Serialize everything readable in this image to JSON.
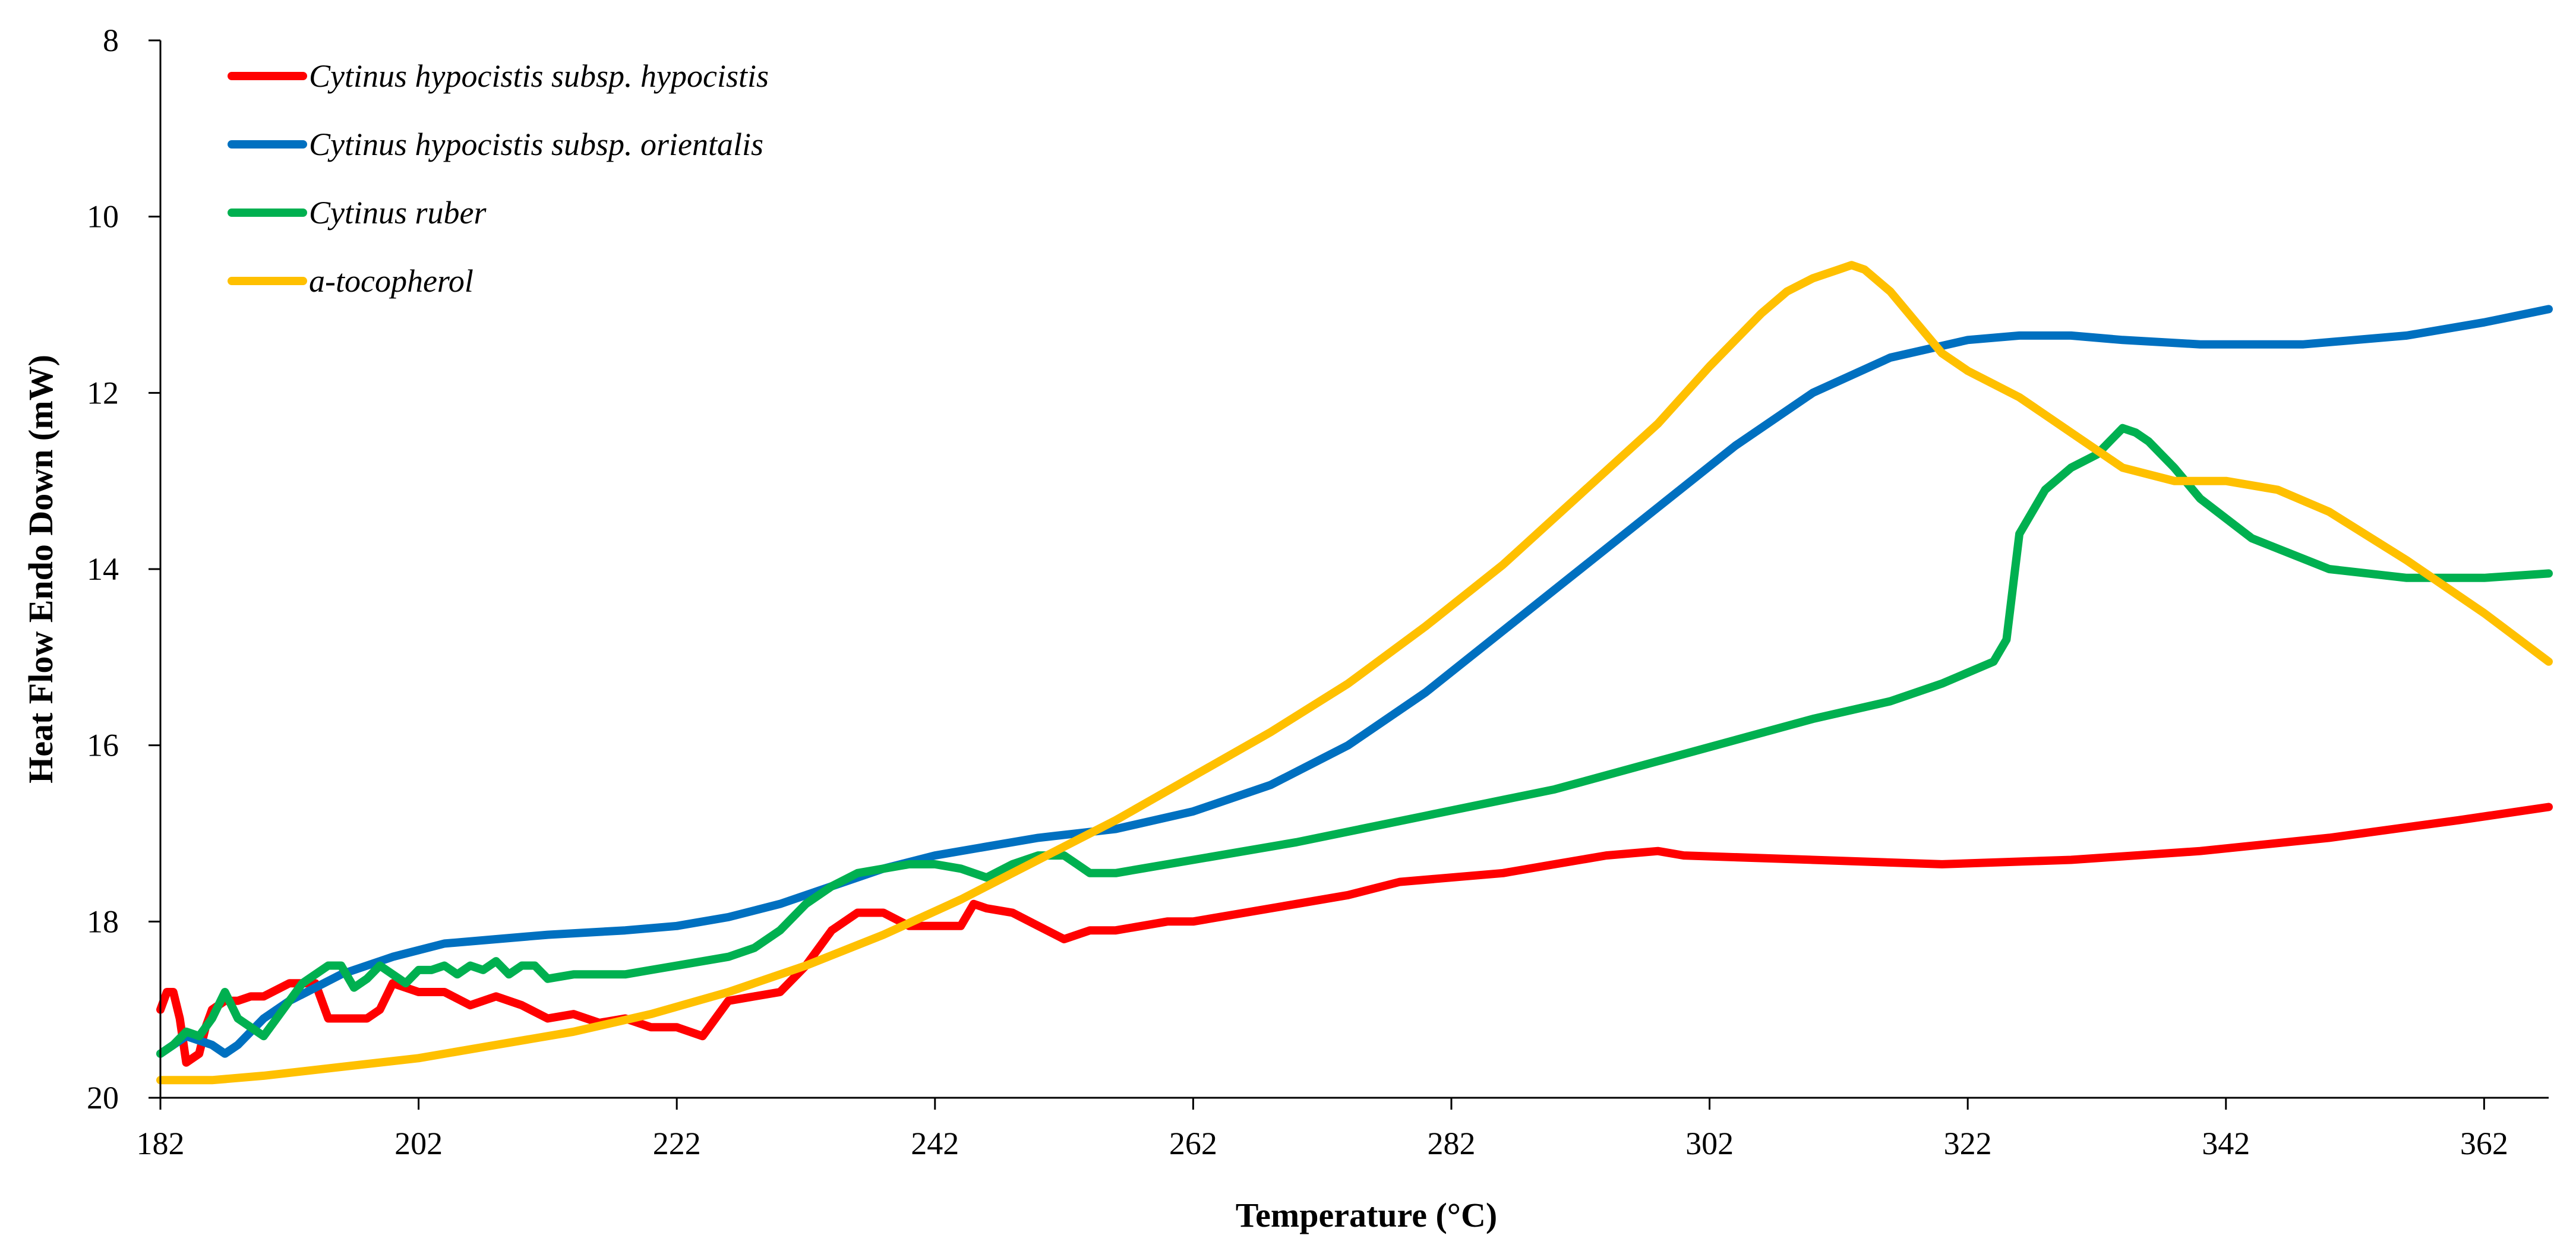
{
  "chart_data": {
    "type": "line",
    "title": "",
    "xlabel": "Temperature (°C)",
    "ylabel": "Heat Flow Endo Down (mW)",
    "xlim": [
      182,
      367
    ],
    "ylim": [
      8,
      20
    ],
    "y_inverted": true,
    "x_ticks": [
      182,
      202,
      222,
      242,
      262,
      282,
      302,
      322,
      342,
      362
    ],
    "y_ticks": [
      8,
      10,
      12,
      14,
      16,
      18,
      20
    ],
    "grid": false,
    "legend_position": "top-left",
    "series": [
      {
        "name": "Cytinus hypocistis subsp. hypocistis",
        "color": "#ff0000",
        "x": [
          182,
          182.5,
          183,
          183.5,
          184,
          185,
          185.5,
          186,
          187,
          188,
          189,
          190,
          192,
          194,
          195,
          196,
          197,
          198,
          199,
          200,
          202,
          204,
          206,
          208,
          210,
          212,
          214,
          216,
          218,
          220,
          222,
          224,
          226,
          228,
          230,
          232,
          234,
          236,
          238,
          240,
          242,
          244,
          245,
          246,
          248,
          250,
          252,
          254,
          256,
          258,
          260,
          262,
          266,
          270,
          274,
          278,
          282,
          286,
          290,
          294,
          298,
          300,
          310,
          320,
          330,
          340,
          350,
          360,
          367
        ],
        "y": [
          19,
          18.8,
          18.8,
          19.1,
          19.6,
          19.5,
          19.2,
          19,
          18.9,
          18.9,
          18.85,
          18.85,
          18.7,
          18.7,
          19.1,
          19.1,
          19.1,
          19.1,
          19.0,
          18.7,
          18.8,
          18.8,
          18.95,
          18.85,
          18.95,
          19.1,
          19.05,
          19.15,
          19.1,
          19.2,
          19.2,
          19.3,
          18.9,
          18.85,
          18.8,
          18.5,
          18.1,
          17.9,
          17.9,
          18.05,
          18.05,
          18.05,
          17.8,
          17.85,
          17.9,
          18.05,
          18.2,
          18.1,
          18.1,
          18.05,
          18.0,
          18.0,
          17.9,
          17.8,
          17.7,
          17.55,
          17.5,
          17.45,
          17.35,
          17.25,
          17.2,
          17.25,
          17.3,
          17.35,
          17.3,
          17.2,
          17.05,
          16.85,
          16.7
        ]
      },
      {
        "name": "Cytinus hypocistis subsp. orientalis",
        "color": "#0070c0",
        "x": [
          182,
          184,
          186,
          187,
          188,
          190,
          192,
          196,
          200,
          204,
          208,
          212,
          218,
          222,
          226,
          230,
          234,
          238,
          242,
          246,
          250,
          256,
          262,
          268,
          274,
          280,
          286,
          292,
          298,
          304,
          310,
          316,
          322,
          326,
          330,
          334,
          340,
          348,
          356,
          362,
          367
        ],
        "y": [
          19.5,
          19.3,
          19.4,
          19.5,
          19.4,
          19.1,
          18.9,
          18.6,
          18.4,
          18.25,
          18.2,
          18.15,
          18.1,
          18.05,
          17.95,
          17.8,
          17.6,
          17.4,
          17.25,
          17.15,
          17.05,
          16.95,
          16.75,
          16.45,
          16.0,
          15.4,
          14.7,
          14.0,
          13.3,
          12.6,
          12.0,
          11.6,
          11.4,
          11.35,
          11.35,
          11.4,
          11.45,
          11.45,
          11.35,
          11.2,
          11.05
        ]
      },
      {
        "name": "Cytinus ruber",
        "color": "#00b050",
        "x": [
          182,
          183,
          184,
          185,
          186,
          187,
          188,
          189,
          190,
          191,
          192,
          193,
          194,
          195,
          196,
          197,
          198,
          199,
          200,
          201,
          202,
          203,
          204,
          205,
          206,
          207,
          208,
          209,
          210,
          211,
          212,
          214,
          216,
          218,
          220,
          222,
          224,
          226,
          228,
          230,
          232,
          234,
          236,
          238,
          240,
          242,
          244,
          246,
          248,
          250,
          252,
          253,
          254,
          256,
          258,
          262,
          270,
          280,
          290,
          300,
          310,
          316,
          320,
          324,
          325,
          326,
          328,
          330,
          332,
          333,
          334,
          335,
          336,
          338,
          340,
          344,
          350,
          356,
          362,
          367
        ],
        "y": [
          19.5,
          19.4,
          19.25,
          19.3,
          19.1,
          18.8,
          19.1,
          19.2,
          19.3,
          19.1,
          18.9,
          18.7,
          18.6,
          18.5,
          18.5,
          18.75,
          18.65,
          18.5,
          18.6,
          18.7,
          18.55,
          18.55,
          18.5,
          18.6,
          18.5,
          18.55,
          18.45,
          18.6,
          18.5,
          18.5,
          18.65,
          18.6,
          18.6,
          18.6,
          18.55,
          18.5,
          18.45,
          18.4,
          18.3,
          18.1,
          17.8,
          17.6,
          17.45,
          17.4,
          17.35,
          17.35,
          17.4,
          17.5,
          17.35,
          17.25,
          17.25,
          17.35,
          17.45,
          17.45,
          17.4,
          17.3,
          17.1,
          16.8,
          16.5,
          16.1,
          15.7,
          15.5,
          15.3,
          15.05,
          14.8,
          13.6,
          13.1,
          12.85,
          12.7,
          12.55,
          12.4,
          12.45,
          12.55,
          12.85,
          13.2,
          13.65,
          14.0,
          14.1,
          14.1,
          14.05
        ]
      },
      {
        "name": "a-tocopherol",
        "color": "#ffc000",
        "x": [
          182,
          186,
          190,
          196,
          202,
          208,
          214,
          220,
          226,
          232,
          238,
          244,
          250,
          256,
          262,
          268,
          274,
          280,
          286,
          292,
          298,
          302,
          306,
          308,
          310,
          311,
          312,
          313,
          314,
          316,
          318,
          320,
          322,
          326,
          330,
          334,
          338,
          342,
          346,
          350,
          356,
          362,
          367
        ],
        "y": [
          19.8,
          19.8,
          19.75,
          19.65,
          19.55,
          19.4,
          19.25,
          19.05,
          18.8,
          18.5,
          18.15,
          17.75,
          17.3,
          16.85,
          16.35,
          15.85,
          15.3,
          14.65,
          13.95,
          13.15,
          12.35,
          11.7,
          11.1,
          10.85,
          10.7,
          10.65,
          10.6,
          10.55,
          10.6,
          10.85,
          11.2,
          11.55,
          11.75,
          12.05,
          12.45,
          12.85,
          13.0,
          13.0,
          13.1,
          13.35,
          13.9,
          14.5,
          15.05
        ]
      }
    ]
  }
}
